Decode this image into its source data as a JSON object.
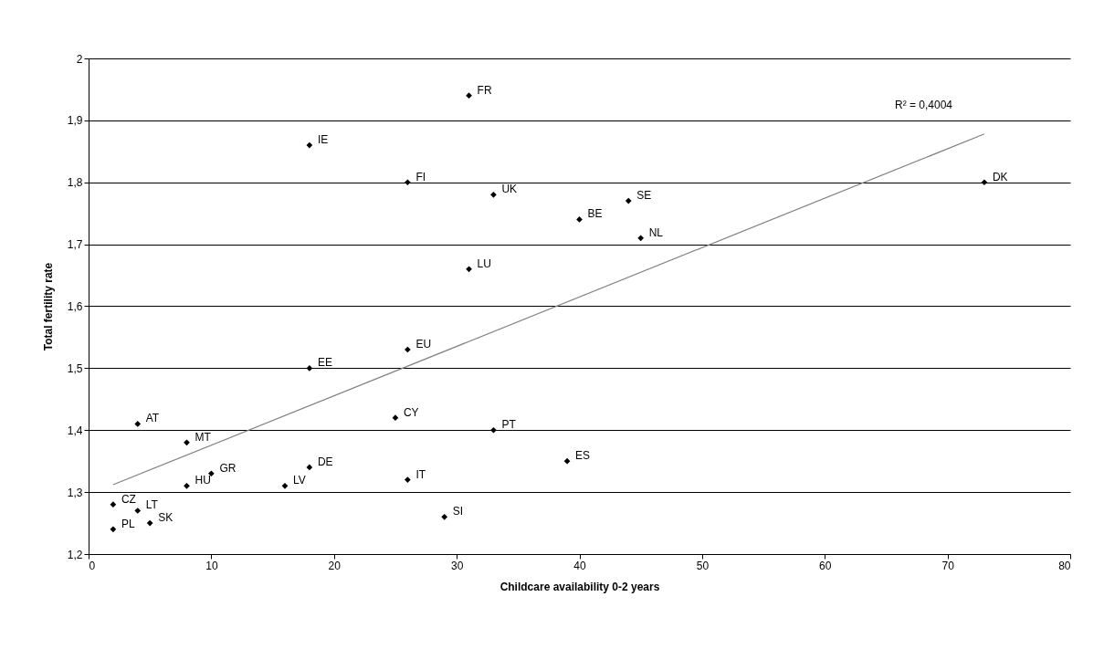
{
  "chart_data": {
    "type": "scatter",
    "xlabel": "Childcare availability 0-2 years",
    "ylabel": "Total fertility rate",
    "series": [
      {
        "color": "#000000",
        "x": [
          31,
          18,
          26,
          33,
          44,
          40,
          45,
          73,
          31,
          26,
          18,
          4,
          25,
          33,
          8,
          39,
          18,
          10,
          26,
          8,
          16,
          2,
          4,
          5,
          29,
          2
        ],
        "values": [
          1.94,
          1.86,
          1.8,
          1.78,
          1.77,
          1.74,
          1.71,
          1.8,
          1.66,
          1.53,
          1.5,
          1.41,
          1.42,
          1.4,
          1.38,
          1.35,
          1.34,
          1.33,
          1.32,
          1.31,
          1.31,
          1.28,
          1.27,
          1.25,
          1.26,
          1.24
        ]
      },
      {
        "type": "line",
        "marker": "none",
        "color": "#808080",
        "x": [
          2,
          73
        ],
        "values": [
          1.312,
          1.878
        ]
      }
    ],
    "annotations": [
      {
        "text": "FR",
        "x": 31,
        "y": 1.94
      },
      {
        "text": "IE",
        "x": 18,
        "y": 1.86
      },
      {
        "text": "FI",
        "x": 26,
        "y": 1.8
      },
      {
        "text": "UK",
        "x": 33,
        "y": 1.78
      },
      {
        "text": "SE",
        "x": 44,
        "y": 1.77
      },
      {
        "text": "BE",
        "x": 40,
        "y": 1.74
      },
      {
        "text": "NL",
        "x": 45,
        "y": 1.71
      },
      {
        "text": "DK",
        "x": 73,
        "y": 1.8
      },
      {
        "text": "LU",
        "x": 31,
        "y": 1.66
      },
      {
        "text": "EU",
        "x": 26,
        "y": 1.53
      },
      {
        "text": "EE",
        "x": 18,
        "y": 1.5
      },
      {
        "text": "AT",
        "x": 4,
        "y": 1.41
      },
      {
        "text": "CY",
        "x": 25,
        "y": 1.42
      },
      {
        "text": "PT",
        "x": 33,
        "y": 1.4
      },
      {
        "text": "MT",
        "x": 8,
        "y": 1.38
      },
      {
        "text": "ES",
        "x": 39,
        "y": 1.35
      },
      {
        "text": "DE",
        "x": 18,
        "y": 1.34
      },
      {
        "text": "GR",
        "x": 10,
        "y": 1.33
      },
      {
        "text": "IT",
        "x": 26,
        "y": 1.32
      },
      {
        "text": "HU",
        "x": 8,
        "y": 1.31
      },
      {
        "text": "LV",
        "x": 16,
        "y": 1.31
      },
      {
        "text": "CZ",
        "x": 2,
        "y": 1.28
      },
      {
        "text": "LT",
        "x": 4,
        "y": 1.27
      },
      {
        "text": "SK",
        "x": 5,
        "y": 1.25
      },
      {
        "text": "SI",
        "x": 29,
        "y": 1.26
      },
      {
        "text": "PL",
        "x": 2,
        "y": 1.24
      },
      "R² = 0,4004"
    ],
    "xlim": [
      0,
      80
    ],
    "xticks": [
      0,
      10,
      20,
      30,
      40,
      50,
      60,
      70,
      80
    ],
    "ylim": [
      1.2,
      2
    ],
    "yticks": [
      {
        "value": 1.2,
        "label": "1,2"
      },
      {
        "value": 1.3,
        "label": "1,3"
      },
      {
        "value": 1.4,
        "label": "1,4"
      },
      {
        "value": 1.5,
        "label": "1,5"
      },
      {
        "value": 1.6,
        "label": "1,6"
      },
      {
        "value": 1.7,
        "label": "1,7"
      },
      {
        "value": 1.8,
        "label": "1,8"
      },
      {
        "value": 1.9,
        "label": "1,9"
      },
      {
        "value": 2,
        "label": "2"
      }
    ],
    "grid": "y",
    "marker": "diamond"
  }
}
